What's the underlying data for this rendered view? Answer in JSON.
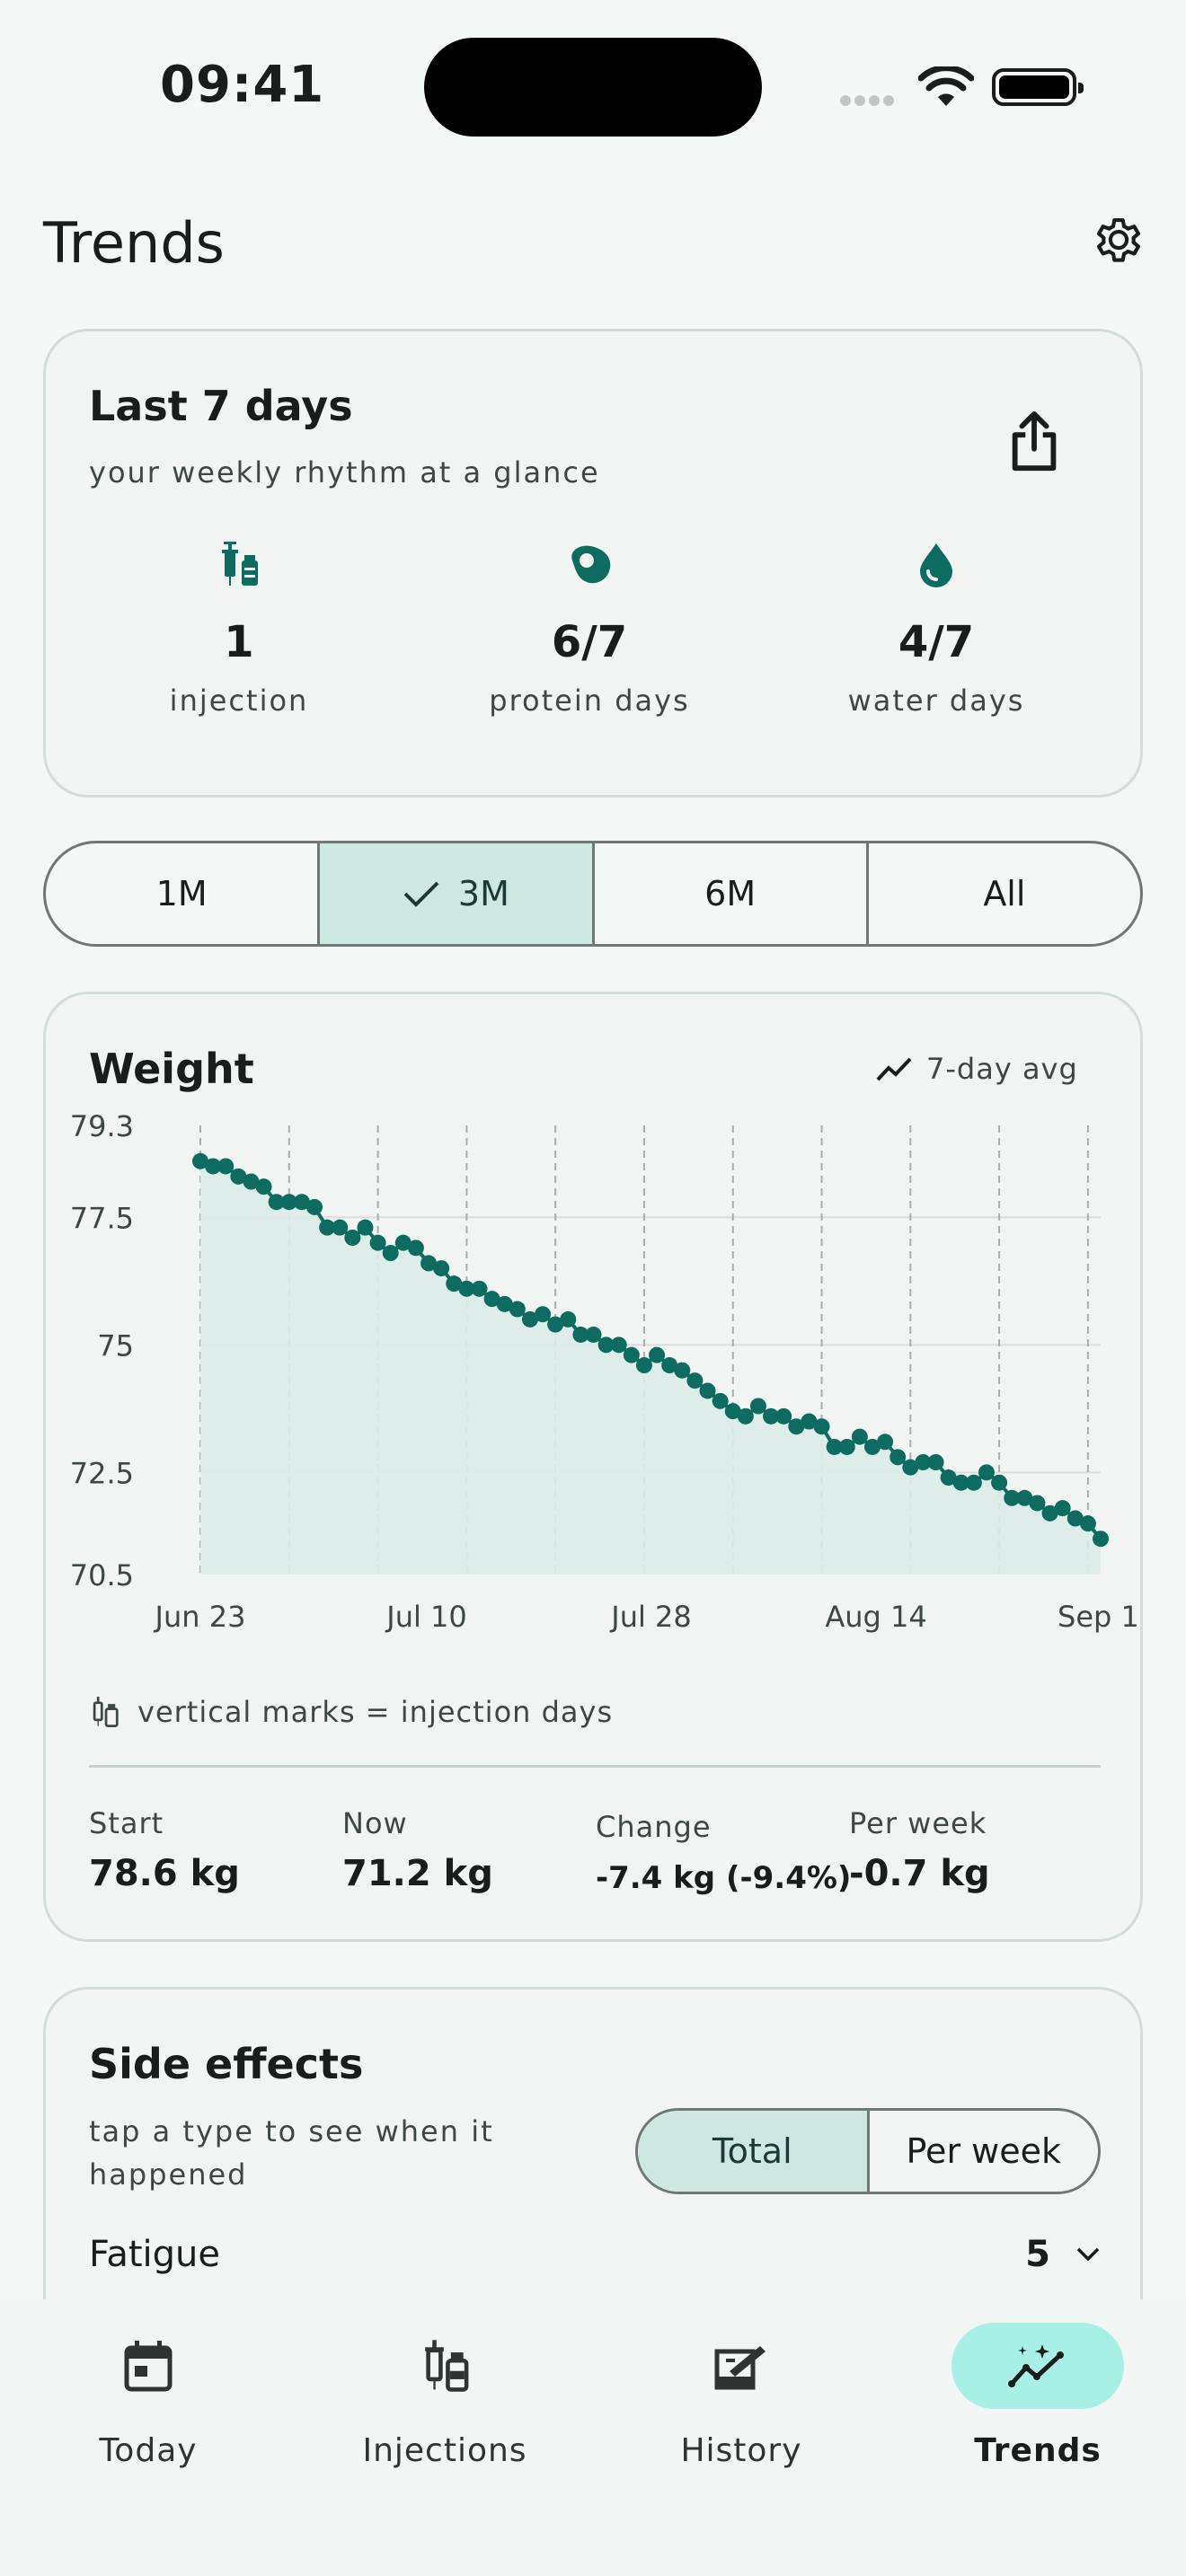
{
  "status": {
    "time": "09:41"
  },
  "header": {
    "title": "Trends"
  },
  "summary": {
    "title": "Last 7 days",
    "subtitle": "your weekly rhythm at a glance",
    "stats": [
      {
        "value": "1",
        "label": "injection",
        "icon": "syringe-vial-icon"
      },
      {
        "value": "6/7",
        "label": "protein days",
        "icon": "egg-icon"
      },
      {
        "value": "4/7",
        "label": "water days",
        "icon": "water-drop-icon"
      }
    ]
  },
  "range": {
    "options": [
      "1M",
      "3M",
      "6M",
      "All"
    ],
    "selected": "3M"
  },
  "weight": {
    "title": "Weight",
    "avg_label": "7-day avg",
    "injection_note": "vertical marks = injection days",
    "stats": [
      {
        "label": "Start",
        "value": "78.6 kg"
      },
      {
        "label": "Now",
        "value": "71.2 kg"
      },
      {
        "label": "Change",
        "value": "-7.4 kg (-9.4%)"
      },
      {
        "label": "Per week",
        "value": "-0.7 kg"
      }
    ]
  },
  "chart_data": {
    "type": "area",
    "title": "Weight",
    "y_ticks": [
      "79.3",
      "77.5",
      "75",
      "72.5",
      "70.5"
    ],
    "x_ticks": [
      "Jun 23",
      "Jul 10",
      "Jul 28",
      "Aug 14",
      "Sep 1"
    ],
    "ylim": [
      70.5,
      79.3
    ],
    "grid": "horizontal",
    "colors": {
      "line": "#0d6b60",
      "fill": "#dcece8",
      "grid": "#d8dedc",
      "injection_mark": "#a7b0ad"
    },
    "injection_days_index": [
      0,
      7,
      14,
      21,
      28,
      35,
      42,
      49,
      56,
      63,
      70
    ],
    "series": [
      {
        "values": [
          78.6,
          78.5,
          78.5,
          78.3,
          78.2,
          78.1,
          77.8,
          77.8,
          77.8,
          77.7,
          77.3,
          77.3,
          77.1,
          77.3,
          77.0,
          76.8,
          77.0,
          76.9,
          76.6,
          76.5,
          76.2,
          76.1,
          76.1,
          75.9,
          75.8,
          75.7,
          75.5,
          75.6,
          75.4,
          75.5,
          75.2,
          75.2,
          75.0,
          75.0,
          74.8,
          74.6,
          74.8,
          74.6,
          74.5,
          74.3,
          74.1,
          73.9,
          73.7,
          73.6,
          73.8,
          73.6,
          73.6,
          73.4,
          73.5,
          73.4,
          73.0,
          73.0,
          73.2,
          73.0,
          73.1,
          72.8,
          72.6,
          72.7,
          72.7,
          72.4,
          72.3,
          72.3,
          72.5,
          72.3,
          72.0,
          72.0,
          71.9,
          71.7,
          71.8,
          71.6,
          71.5,
          71.2
        ]
      }
    ]
  },
  "effects": {
    "title": "Side effects",
    "subtitle": "tap a type to see when it happened",
    "toggle": [
      "Total",
      "Per week"
    ],
    "toggle_selected": "Total",
    "rows": [
      {
        "name": "Fatigue",
        "count": "5"
      }
    ]
  },
  "nav": {
    "items": [
      {
        "label": "Today",
        "icon": "calendar-icon"
      },
      {
        "label": "Injections",
        "icon": "syringe-vial-icon"
      },
      {
        "label": "History",
        "icon": "history-icon"
      },
      {
        "label": "Trends",
        "icon": "trend-sparkle-icon"
      }
    ],
    "active": "Trends"
  }
}
